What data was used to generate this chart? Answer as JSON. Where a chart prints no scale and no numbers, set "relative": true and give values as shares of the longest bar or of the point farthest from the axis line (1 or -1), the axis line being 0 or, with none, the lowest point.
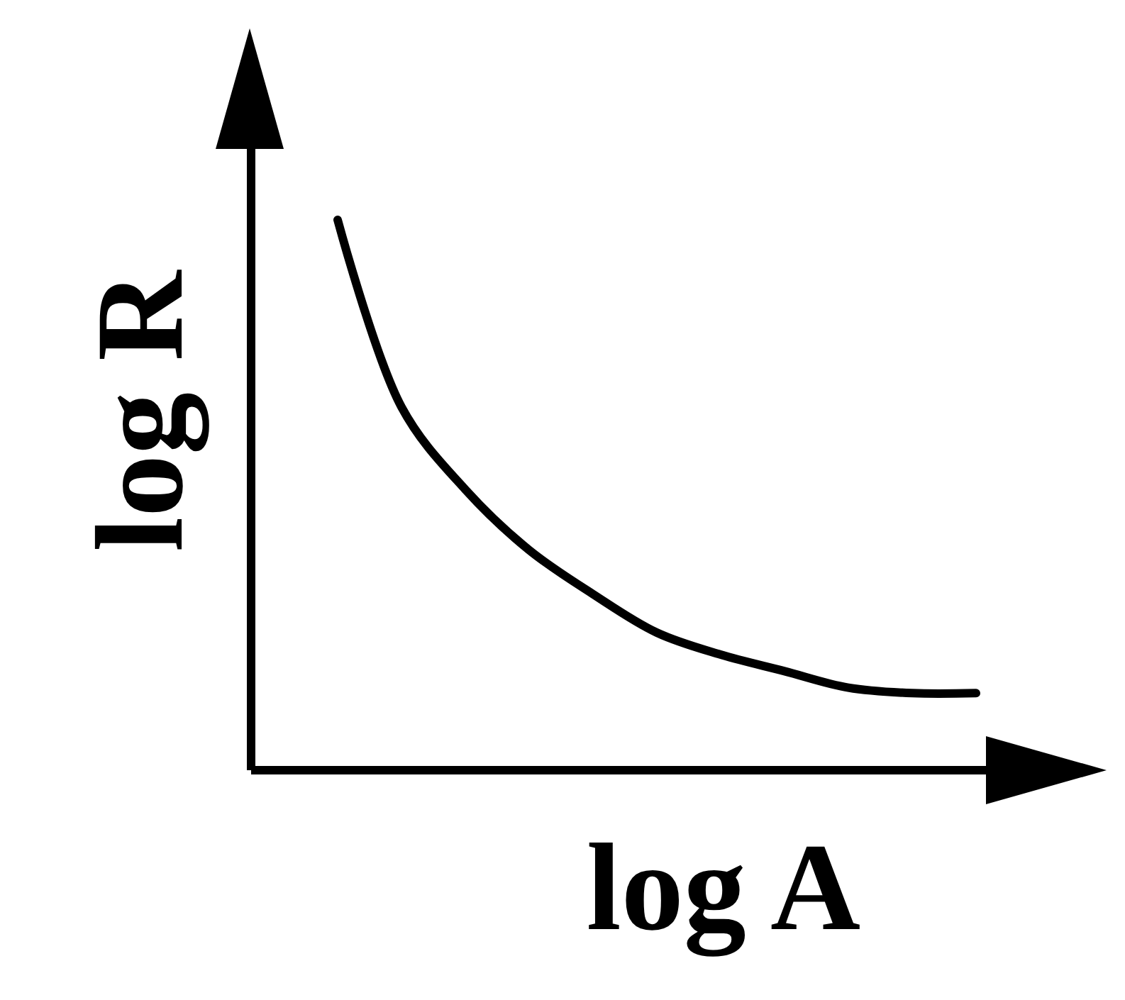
{
  "chart_data": {
    "type": "line",
    "relative": true,
    "xlabel": "log A",
    "ylabel": "log R",
    "categories": [
      null,
      null,
      null,
      null,
      null,
      null,
      null,
      null,
      null,
      null,
      null
    ],
    "values": [
      1,
      0.66,
      0.51,
      0.4,
      0.32,
      0.25,
      0.21,
      0.18,
      0.15,
      0.14,
      0.14
    ],
    "color": "#000000"
  }
}
